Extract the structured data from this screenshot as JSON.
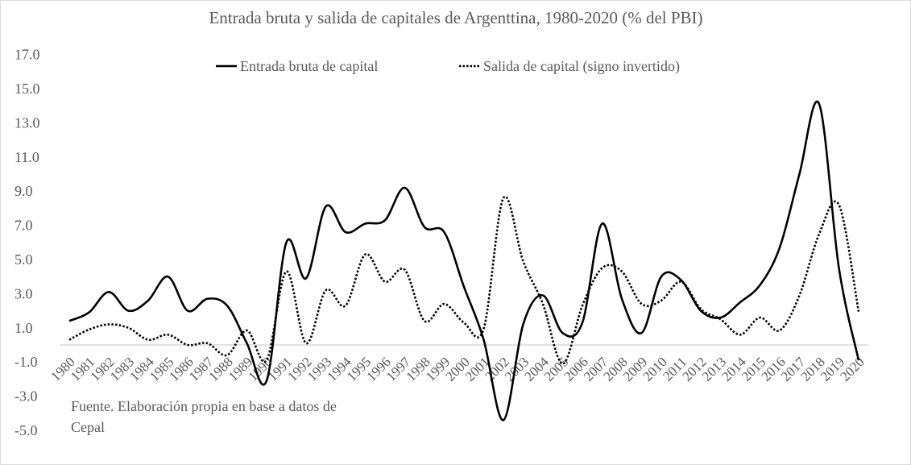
{
  "chart_data": {
    "type": "line",
    "title": "Entrada bruta y salida de capitales de Argenttina, 1980-2020 (% del PBI)",
    "xlabel": "",
    "ylabel": "",
    "ylim": [
      -5,
      17
    ],
    "yticks": [
      "-5.0",
      "-3.0",
      "-1.0",
      "1.0",
      "3.0",
      "5.0",
      "7.0",
      "9.0",
      "11.0",
      "13.0",
      "15.0",
      "17.0"
    ],
    "grid": false,
    "legend_position": "top-center",
    "categories": [
      "1980",
      "1981",
      "1982",
      "1983",
      "1984",
      "1985",
      "1986",
      "1987",
      "1988",
      "1989",
      "1990",
      "1991",
      "1992",
      "1993",
      "1994",
      "1995",
      "1996",
      "1997",
      "1998",
      "1999",
      "2000",
      "2001",
      "2002",
      "2003",
      "2004",
      "2005",
      "2006",
      "2007",
      "2008",
      "2009",
      "2010",
      "2011",
      "2012",
      "2013",
      "2014",
      "2015",
      "2016",
      "2017",
      "2018",
      "2019",
      "2020"
    ],
    "series": [
      {
        "name": "Entrada bruta de capital",
        "style": "solid",
        "values": [
          1.4,
          1.9,
          3.1,
          2.0,
          2.6,
          4.0,
          2.0,
          2.7,
          2.3,
          0.1,
          -2.1,
          6.0,
          3.9,
          8.1,
          6.6,
          7.1,
          7.3,
          9.2,
          6.9,
          6.6,
          3.4,
          0.3,
          -4.4,
          1.2,
          2.9,
          0.7,
          1.3,
          7.1,
          2.7,
          0.7,
          4.0,
          3.8,
          2.0,
          1.6,
          2.5,
          3.5,
          5.7,
          10.0,
          14.1,
          4.5,
          -0.9
        ]
      },
      {
        "name": "Salida de capital (signo invertido)",
        "style": "dotted",
        "values": [
          0.3,
          0.9,
          1.2,
          1.0,
          0.3,
          0.6,
          0.0,
          0.1,
          -0.6,
          0.85,
          -0.9,
          4.3,
          0.1,
          3.2,
          2.3,
          5.3,
          3.7,
          4.4,
          1.4,
          2.4,
          1.3,
          0.95,
          8.6,
          4.9,
          2.4,
          -1.1,
          2.3,
          4.5,
          4.3,
          2.4,
          2.6,
          3.7,
          2.1,
          1.5,
          0.6,
          1.6,
          0.85,
          2.9,
          6.5,
          8.2,
          1.95
        ]
      }
    ],
    "annotation": [
      "Fuente. Elaboración propia en base a datos de",
      "Cepal"
    ]
  },
  "colors": {
    "line": "#000000",
    "axis": "#d9d9d9",
    "text": "#595959",
    "border": "#d9d9d9"
  }
}
